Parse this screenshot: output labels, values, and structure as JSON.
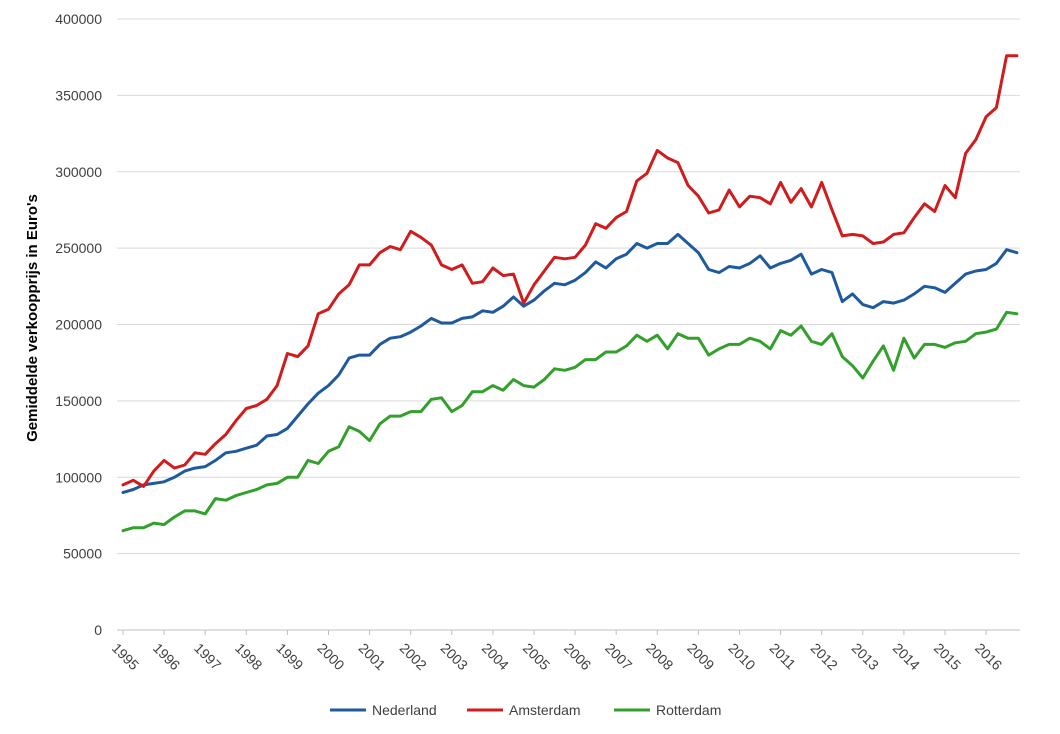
{
  "chart_data": {
    "type": "line",
    "title": "",
    "xlabel": "",
    "ylabel": "Gemiddelde verkoopprijs in Euro's",
    "ylim": [
      0,
      400000
    ],
    "y_ticks": [
      "0",
      "50000",
      "100000",
      "150000",
      "200000",
      "250000",
      "300000",
      "350000",
      "400000"
    ],
    "x_ticks": [
      "1995",
      "1996",
      "1997",
      "1998",
      "1999",
      "2000",
      "2001",
      "2002",
      "2003",
      "2004",
      "2005",
      "2006",
      "2007",
      "2008",
      "2009",
      "2010",
      "2011",
      "2012",
      "2013",
      "2014",
      "2015",
      "2016"
    ],
    "x_start": 1995,
    "points_per_year": 4,
    "grid": "horizontal",
    "legend_position": "bottom",
    "series": [
      {
        "name": "Nederland",
        "color": "#1f5a9e",
        "values": [
          90000,
          92000,
          95000,
          96000,
          97000,
          100000,
          104000,
          106000,
          107000,
          111000,
          116000,
          117000,
          119000,
          121000,
          127000,
          128000,
          132000,
          140000,
          148000,
          155000,
          160000,
          167000,
          178000,
          180000,
          180000,
          187000,
          191000,
          192000,
          195000,
          199000,
          204000,
          201000,
          201000,
          204000,
          205000,
          209000,
          208000,
          212000,
          218000,
          212000,
          216000,
          222000,
          227000,
          226000,
          229000,
          234000,
          241000,
          237000,
          243000,
          246000,
          253000,
          250000,
          253000,
          253000,
          259000,
          253000,
          247000,
          236000,
          234000,
          238000,
          237000,
          240000,
          245000,
          237000,
          240000,
          242000,
          246000,
          233000,
          236000,
          234000,
          215000,
          220000,
          213000,
          211000,
          215000,
          214000,
          216000,
          220000,
          225000,
          224000,
          221000,
          227000,
          233000,
          235000,
          236000,
          240000,
          249000,
          247000
        ]
      },
      {
        "name": "Amsterdam",
        "color": "#d01c1c",
        "values": [
          95000,
          98000,
          94000,
          104000,
          111000,
          106000,
          108000,
          116000,
          115000,
          122000,
          128000,
          137000,
          145000,
          147000,
          151000,
          160000,
          181000,
          179000,
          186000,
          207000,
          210000,
          220000,
          226000,
          239000,
          239000,
          247000,
          251000,
          249000,
          261000,
          257000,
          252000,
          239000,
          236000,
          239000,
          227000,
          228000,
          237000,
          232000,
          233000,
          214000,
          226000,
          235000,
          244000,
          243000,
          244000,
          252000,
          266000,
          263000,
          270000,
          274000,
          294000,
          299000,
          314000,
          309000,
          306000,
          291000,
          284000,
          273000,
          275000,
          288000,
          277000,
          284000,
          283000,
          279000,
          293000,
          280000,
          289000,
          277000,
          293000,
          275000,
          258000,
          259000,
          258000,
          253000,
          254000,
          259000,
          260000,
          270000,
          279000,
          274000,
          291000,
          283000,
          312000,
          321000,
          336000,
          342000,
          376000,
          376000
        ]
      },
      {
        "name": "Rotterdam",
        "color": "#33a02c",
        "values": [
          65000,
          67000,
          67000,
          70000,
          69000,
          74000,
          78000,
          78000,
          76000,
          86000,
          85000,
          88000,
          90000,
          92000,
          95000,
          96000,
          100000,
          100000,
          111000,
          109000,
          117000,
          120000,
          133000,
          130000,
          124000,
          135000,
          140000,
          140000,
          143000,
          143000,
          151000,
          152000,
          143000,
          147000,
          156000,
          156000,
          160000,
          157000,
          164000,
          160000,
          159000,
          164000,
          171000,
          170000,
          172000,
          177000,
          177000,
          182000,
          182000,
          186000,
          193000,
          189000,
          193000,
          184000,
          194000,
          191000,
          191000,
          180000,
          184000,
          187000,
          187000,
          191000,
          189000,
          184000,
          196000,
          193000,
          199000,
          189000,
          187000,
          194000,
          179000,
          173000,
          165000,
          176000,
          186000,
          170000,
          191000,
          178000,
          187000,
          187000,
          185000,
          188000,
          189000,
          194000,
          195000,
          197000,
          208000,
          207000
        ]
      }
    ]
  }
}
